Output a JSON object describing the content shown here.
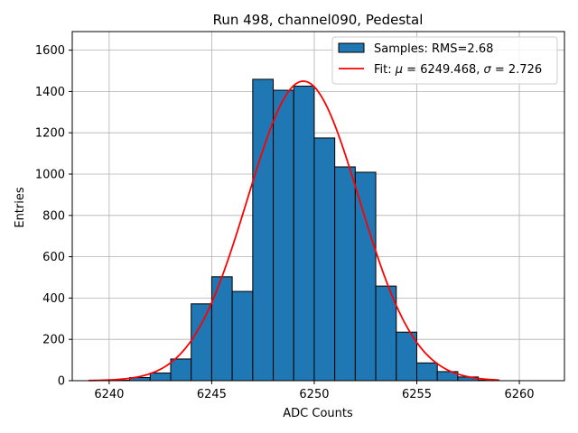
{
  "chart_data": {
    "type": "bar",
    "title": "Run 498, channel090, Pedestal",
    "xlabel": "ADC Counts",
    "ylabel": "Entries",
    "xlim": [
      6238.2,
      6262.2
    ],
    "ylim": [
      0,
      1690
    ],
    "xticks": [
      6240,
      6245,
      6250,
      6255,
      6260
    ],
    "yticks": [
      0,
      200,
      400,
      600,
      800,
      1000,
      1200,
      1400,
      1600
    ],
    "grid": true,
    "legend_position": "top-right",
    "bin_edges": [
      6239,
      6240,
      6241,
      6242,
      6243,
      6244,
      6245,
      6246,
      6247,
      6248,
      6249,
      6250,
      6251,
      6252,
      6253,
      6254,
      6255,
      6256,
      6257,
      6258,
      6259,
      6260,
      6261
    ],
    "counts": [
      0,
      2,
      15,
      37,
      105,
      372,
      503,
      432,
      1459,
      1406,
      1426,
      1175,
      1035,
      1009,
      458,
      235,
      86,
      44,
      18,
      3,
      0,
      0
    ],
    "bar_color": "#1f77b4",
    "fit": {
      "mu": 6249.468,
      "sigma": 2.726,
      "amplitude": 1450,
      "x_range": [
        6239,
        6259
      ],
      "color": "#ff0000"
    },
    "legend": [
      {
        "label": "Samples: RMS=2.68",
        "kind": "patch",
        "color": "#1f77b4"
      },
      {
        "label_prefix": "Fit: ",
        "mu_symbol": "μ",
        "mu_text": " = 6249.468, ",
        "sigma_symbol": "σ",
        "sigma_text": " = 2.726",
        "kind": "line",
        "color": "#ff0000"
      }
    ]
  }
}
